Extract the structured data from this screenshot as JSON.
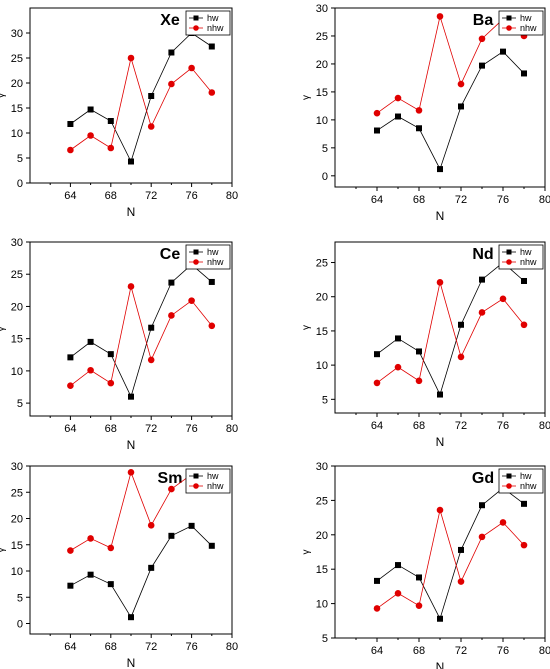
{
  "chart_data": [
    {
      "type": "line",
      "title": "Xe",
      "xlabel": "N",
      "ylabel": "γ",
      "xlim": [
        60,
        80
      ],
      "ylim": [
        0,
        35
      ],
      "xticks": [
        64,
        68,
        72,
        76,
        80
      ],
      "yticks": [
        0,
        5,
        10,
        15,
        20,
        25,
        30
      ],
      "legend": "top-right",
      "x": [
        64,
        66,
        68,
        70,
        72,
        74,
        76,
        78
      ],
      "series": [
        {
          "name": "hw",
          "color": "#000000",
          "marker": "square",
          "values": [
            11.8,
            14.7,
            12.4,
            4.3,
            17.4,
            26.1,
            30.0,
            27.3
          ]
        },
        {
          "name": "nhw",
          "color": "#e00000",
          "marker": "circle",
          "values": [
            6.6,
            9.5,
            7.0,
            25.0,
            11.3,
            19.8,
            23.0,
            18.1
          ]
        }
      ]
    },
    {
      "type": "line",
      "title": "Ba",
      "xlabel": "N",
      "ylabel": "γ",
      "xlim": [
        60,
        80
      ],
      "ylim": [
        -2,
        30
      ],
      "xticks": [
        64,
        68,
        72,
        76,
        80
      ],
      "yticks": [
        0,
        5,
        10,
        15,
        20,
        25,
        30
      ],
      "legend": "top-right",
      "x": [
        64,
        66,
        68,
        70,
        72,
        74,
        76,
        78
      ],
      "series": [
        {
          "name": "hw",
          "color": "#000000",
          "marker": "square",
          "values": [
            8.1,
            10.6,
            8.5,
            1.2,
            12.4,
            19.7,
            22.2,
            18.3
          ]
        },
        {
          "name": "nhw",
          "color": "#e00000",
          "marker": "circle",
          "values": [
            11.2,
            13.9,
            11.7,
            28.5,
            16.4,
            24.5,
            28.0,
            25.0
          ]
        }
      ]
    },
    {
      "type": "line",
      "title": "Ce",
      "xlabel": "N",
      "ylabel": "γ",
      "xlim": [
        60,
        80
      ],
      "ylim": [
        3,
        30
      ],
      "xticks": [
        64,
        68,
        72,
        76,
        80
      ],
      "yticks": [
        5,
        10,
        15,
        20,
        25,
        30
      ],
      "legend": "top-right",
      "x": [
        64,
        66,
        68,
        70,
        72,
        74,
        76,
        78
      ],
      "series": [
        {
          "name": "hw",
          "color": "#000000",
          "marker": "square",
          "values": [
            12.1,
            14.5,
            12.6,
            6.0,
            16.7,
            23.7,
            26.5,
            23.8
          ]
        },
        {
          "name": "nhw",
          "color": "#e00000",
          "marker": "circle",
          "values": [
            7.7,
            10.1,
            8.1,
            23.1,
            11.7,
            18.6,
            20.9,
            17.0
          ]
        }
      ]
    },
    {
      "type": "line",
      "title": "Nd",
      "xlabel": "N",
      "ylabel": "γ",
      "xlim": [
        60,
        80
      ],
      "ylim": [
        3,
        28
      ],
      "xticks": [
        64,
        68,
        72,
        76,
        80
      ],
      "yticks": [
        5,
        10,
        15,
        20,
        25
      ],
      "legend": "top-right",
      "x": [
        64,
        66,
        68,
        70,
        72,
        74,
        76,
        78
      ],
      "series": [
        {
          "name": "hw",
          "color": "#000000",
          "marker": "square",
          "values": [
            11.6,
            13.9,
            12.0,
            5.7,
            15.9,
            22.5,
            25.0,
            22.3
          ]
        },
        {
          "name": "nhw",
          "color": "#e00000",
          "marker": "circle",
          "values": [
            7.4,
            9.7,
            7.7,
            22.1,
            11.2,
            17.7,
            19.7,
            15.9
          ]
        }
      ]
    },
    {
      "type": "line",
      "title": "Sm",
      "xlabel": "N",
      "ylabel": "γ",
      "xlim": [
        60,
        80
      ],
      "ylim": [
        -2,
        30
      ],
      "xticks": [
        64,
        68,
        72,
        76,
        80
      ],
      "yticks": [
        0,
        5,
        10,
        15,
        20,
        25,
        30
      ],
      "legend": "top-right",
      "x": [
        64,
        66,
        68,
        70,
        72,
        74,
        76,
        78
      ],
      "series": [
        {
          "name": "hw",
          "color": "#000000",
          "marker": "square",
          "values": [
            7.2,
            9.3,
            7.5,
            1.2,
            10.6,
            16.7,
            18.6,
            14.8
          ]
        },
        {
          "name": "nhw",
          "color": "#e00000",
          "marker": "circle",
          "values": [
            13.9,
            16.2,
            14.4,
            28.8,
            18.7,
            25.6,
            28.4,
            26.2
          ]
        }
      ]
    },
    {
      "type": "line",
      "title": "Gd",
      "xlabel": "N",
      "ylabel": "γ",
      "xlim": [
        60,
        80
      ],
      "ylim": [
        5,
        30
      ],
      "xticks": [
        64,
        68,
        72,
        76,
        80
      ],
      "yticks": [
        5,
        10,
        15,
        20,
        25,
        30
      ],
      "legend": "top-right",
      "x": [
        64,
        66,
        68,
        70,
        72,
        74,
        76,
        78
      ],
      "series": [
        {
          "name": "hw",
          "color": "#000000",
          "marker": "square",
          "values": [
            13.3,
            15.6,
            13.8,
            7.8,
            17.8,
            24.3,
            26.8,
            24.5
          ]
        },
        {
          "name": "nhw",
          "color": "#e00000",
          "marker": "circle",
          "values": [
            9.3,
            11.5,
            9.7,
            23.6,
            13.2,
            19.7,
            21.8,
            18.5
          ]
        }
      ]
    }
  ]
}
